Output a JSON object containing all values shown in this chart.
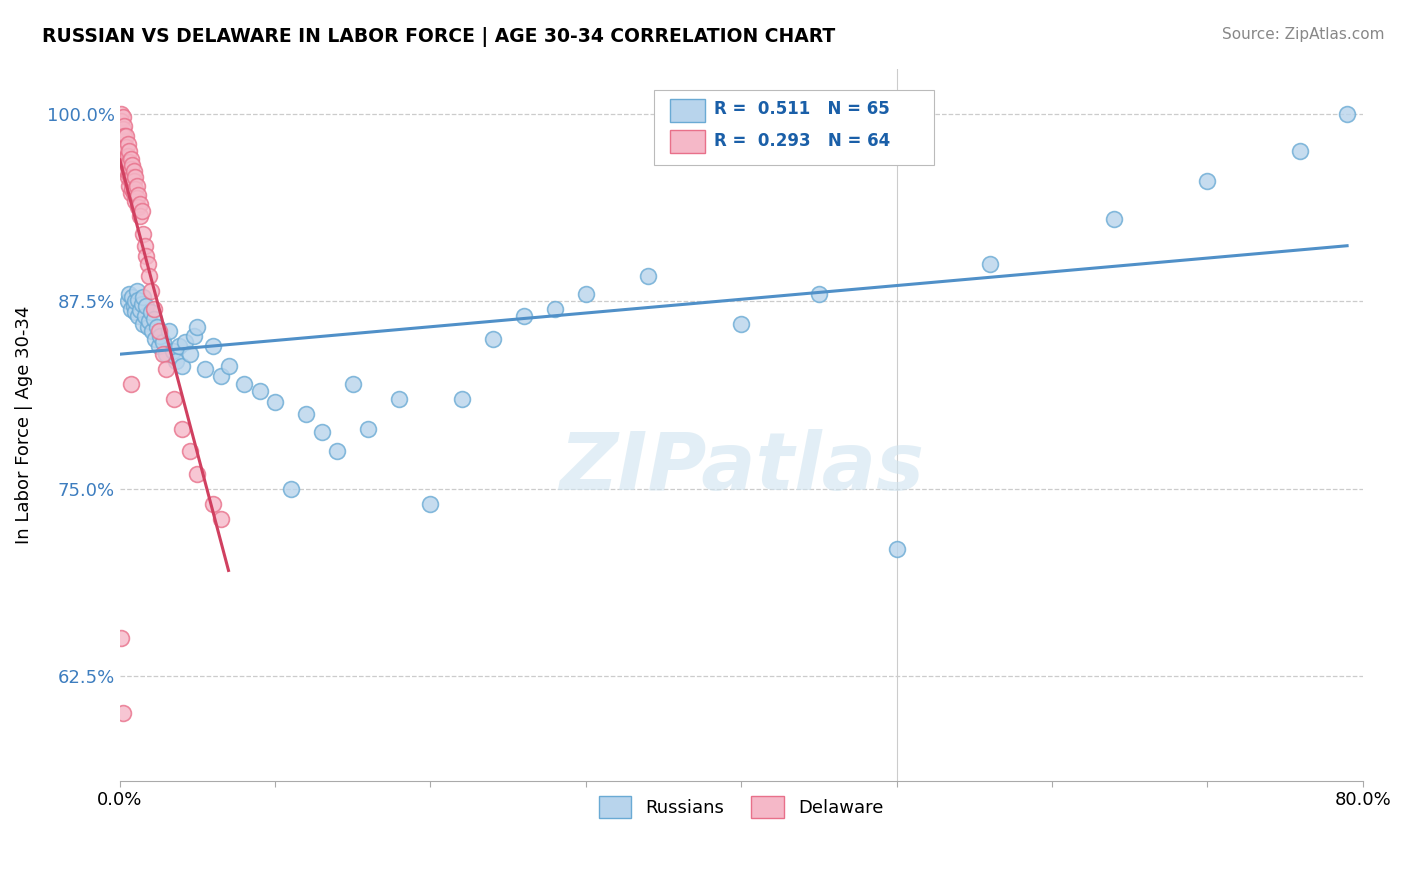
{
  "title": "RUSSIAN VS DELAWARE IN LABOR FORCE | AGE 30-34 CORRELATION CHART",
  "source": "Source: ZipAtlas.com",
  "ylabel": "In Labor Force | Age 30-34",
  "blue_color": "#b8d4ec",
  "pink_color": "#f5b8c8",
  "blue_edge_color": "#6aaad4",
  "pink_edge_color": "#e8708a",
  "blue_line_color": "#5090c8",
  "pink_line_color": "#d04060",
  "r_blue": 0.511,
  "n_blue": 65,
  "r_pink": 0.293,
  "n_pink": 64,
  "xlim": [
    0.0,
    0.8
  ],
  "ylim": [
    0.555,
    1.03
  ],
  "yticks": [
    0.625,
    0.75,
    0.875,
    1.0
  ],
  "ytick_labels": [
    "62.5%",
    "75.0%",
    "87.5%",
    "100.0%"
  ],
  "xtick_positions": [
    0.0,
    0.8
  ],
  "xtick_labels": [
    "0.0%",
    "80.0%"
  ],
  "watermark": "ZIPatlas",
  "blue_x": [
    0.005,
    0.006,
    0.007,
    0.008,
    0.009,
    0.01,
    0.01,
    0.011,
    0.012,
    0.012,
    0.013,
    0.014,
    0.015,
    0.015,
    0.016,
    0.017,
    0.018,
    0.019,
    0.02,
    0.021,
    0.022,
    0.023,
    0.024,
    0.025,
    0.026,
    0.028,
    0.03,
    0.032,
    0.034,
    0.036,
    0.038,
    0.04,
    0.042,
    0.045,
    0.048,
    0.05,
    0.055,
    0.06,
    0.065,
    0.07,
    0.08,
    0.09,
    0.1,
    0.11,
    0.12,
    0.13,
    0.14,
    0.15,
    0.16,
    0.18,
    0.2,
    0.22,
    0.24,
    0.26,
    0.28,
    0.3,
    0.34,
    0.4,
    0.45,
    0.5,
    0.56,
    0.64,
    0.7,
    0.76,
    0.79
  ],
  "blue_y": [
    0.875,
    0.88,
    0.87,
    0.878,
    0.872,
    0.868,
    0.875,
    0.882,
    0.865,
    0.876,
    0.869,
    0.873,
    0.86,
    0.878,
    0.865,
    0.872,
    0.858,
    0.862,
    0.868,
    0.855,
    0.863,
    0.85,
    0.858,
    0.845,
    0.852,
    0.848,
    0.84,
    0.855,
    0.842,
    0.835,
    0.845,
    0.832,
    0.848,
    0.84,
    0.852,
    0.858,
    0.83,
    0.845,
    0.825,
    0.832,
    0.82,
    0.815,
    0.808,
    0.75,
    0.8,
    0.788,
    0.775,
    0.82,
    0.79,
    0.81,
    0.74,
    0.81,
    0.85,
    0.865,
    0.87,
    0.88,
    0.892,
    0.86,
    0.88,
    0.71,
    0.9,
    0.93,
    0.955,
    0.975,
    1.0
  ],
  "pink_x": [
    0.001,
    0.001,
    0.001,
    0.002,
    0.002,
    0.002,
    0.002,
    0.002,
    0.003,
    0.003,
    0.003,
    0.003,
    0.003,
    0.004,
    0.004,
    0.004,
    0.004,
    0.005,
    0.005,
    0.005,
    0.005,
    0.006,
    0.006,
    0.006,
    0.006,
    0.007,
    0.007,
    0.007,
    0.007,
    0.008,
    0.008,
    0.008,
    0.009,
    0.009,
    0.009,
    0.01,
    0.01,
    0.01,
    0.011,
    0.011,
    0.012,
    0.012,
    0.013,
    0.013,
    0.014,
    0.015,
    0.016,
    0.017,
    0.018,
    0.019,
    0.02,
    0.022,
    0.025,
    0.028,
    0.03,
    0.035,
    0.04,
    0.045,
    0.05,
    0.06,
    0.065,
    0.007,
    0.001,
    0.002
  ],
  "pink_y": [
    1.0,
    0.995,
    0.988,
    0.998,
    0.99,
    0.982,
    0.975,
    0.968,
    0.992,
    0.985,
    0.977,
    0.97,
    0.963,
    0.985,
    0.978,
    0.97,
    0.963,
    0.98,
    0.972,
    0.965,
    0.958,
    0.975,
    0.968,
    0.96,
    0.952,
    0.97,
    0.963,
    0.955,
    0.947,
    0.966,
    0.958,
    0.95,
    0.962,
    0.955,
    0.947,
    0.958,
    0.95,
    0.942,
    0.952,
    0.944,
    0.946,
    0.938,
    0.94,
    0.932,
    0.935,
    0.92,
    0.912,
    0.905,
    0.9,
    0.892,
    0.882,
    0.87,
    0.855,
    0.84,
    0.83,
    0.81,
    0.79,
    0.775,
    0.76,
    0.74,
    0.73,
    0.82,
    0.65,
    0.6
  ]
}
